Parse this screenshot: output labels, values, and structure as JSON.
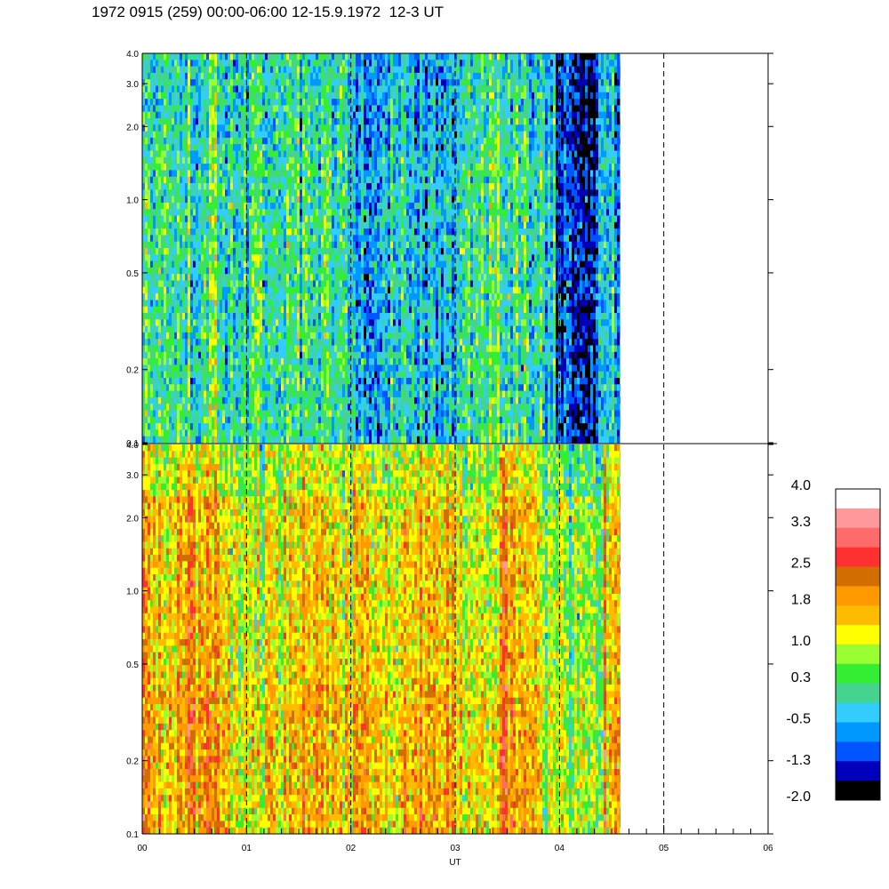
{
  "title": "1972 0915 (259) 00:00-06:00 12-15.9.1972  12-3 UT",
  "chart_data": [
    {
      "type": "heatmap",
      "panel": "upper",
      "x_range": [
        "00",
        "06"
      ],
      "y_scale": "log",
      "ylim": [
        0.1,
        4.0
      ],
      "y_ticks": [
        "0.1",
        "0.2",
        "0.5",
        "1.0",
        "2.0",
        "3.0",
        "4.0"
      ],
      "y_tick_values": [
        0.1,
        0.2,
        0.5,
        1.0,
        2.0,
        3.0,
        4.0
      ],
      "data_extent_x": [
        0,
        4.58
      ],
      "base_value": 0.0,
      "bands": [
        {
          "x": [
            0.0,
            0.35
          ],
          "value": 0.1
        },
        {
          "x": [
            0.35,
            0.62
          ],
          "value": 0.25
        },
        {
          "x": [
            0.62,
            0.7
          ],
          "value": 1.0
        },
        {
          "x": [
            0.7,
            1.0
          ],
          "value": -0.1
        },
        {
          "x": [
            1.0,
            1.55
          ],
          "value": 0.2
        },
        {
          "x": [
            1.55,
            1.95
          ],
          "value": 0.1
        },
        {
          "x": [
            1.95,
            2.3
          ],
          "value": -0.6
        },
        {
          "x": [
            2.3,
            2.6
          ],
          "value": -0.3
        },
        {
          "x": [
            2.6,
            3.0
          ],
          "value": -0.4
        },
        {
          "x": [
            3.0,
            3.5
          ],
          "value": 0.2
        },
        {
          "x": [
            3.5,
            3.95
          ],
          "value": 0.1
        },
        {
          "x": [
            3.95,
            4.35
          ],
          "value": -1.3
        },
        {
          "x": [
            4.35,
            4.58
          ],
          "value": -0.3
        }
      ]
    },
    {
      "type": "heatmap",
      "panel": "lower",
      "x_range": [
        "00",
        "06"
      ],
      "y_scale": "log",
      "ylim": [
        0.1,
        4.0
      ],
      "y_ticks": [
        "0.1",
        "0.2",
        "0.5",
        "1.0",
        "2.0",
        "3.0",
        "4.0"
      ],
      "y_tick_values": [
        0.1,
        0.2,
        0.5,
        1.0,
        2.0,
        3.0,
        4.0
      ],
      "x_ticks": [
        "00",
        "01",
        "02",
        "03",
        "04",
        "05",
        "06"
      ],
      "x_tick_values": [
        0,
        1,
        2,
        3,
        4,
        5,
        6
      ],
      "xlabel": "UT",
      "data_extent_x": [
        0,
        4.58
      ],
      "base_value": 1.3,
      "bands": [
        {
          "x": [
            0.0,
            0.6
          ],
          "value": 1.6
        },
        {
          "x": [
            0.6,
            0.72
          ],
          "value": 2.2
        },
        {
          "x": [
            0.72,
            1.0
          ],
          "value": 1.3
        },
        {
          "x": [
            1.0,
            1.5
          ],
          "value": 1.1
        },
        {
          "x": [
            1.5,
            1.75
          ],
          "value": 1.7
        },
        {
          "x": [
            1.75,
            2.05
          ],
          "value": 1.2
        },
        {
          "x": [
            2.05,
            2.5
          ],
          "value": 1.3
        },
        {
          "x": [
            2.5,
            3.0
          ],
          "value": 1.5
        },
        {
          "x": [
            3.0,
            3.4
          ],
          "value": 1.1
        },
        {
          "x": [
            3.4,
            3.8
          ],
          "value": 1.8
        },
        {
          "x": [
            3.8,
            4.05
          ],
          "value": 0.9
        },
        {
          "x": [
            4.05,
            4.4
          ],
          "value": 0.6
        },
        {
          "x": [
            4.4,
            4.58
          ],
          "value": 1.6
        }
      ]
    }
  ],
  "dashed_time_lines": [
    1,
    2,
    3,
    4,
    5
  ],
  "colorbar": {
    "labels": [
      "4.0",
      "3.3",
      "2.5",
      "1.8",
      "1.0",
      "0.3",
      "-0.5",
      "-1.3",
      "-2.0"
    ],
    "label_values": [
      4.0,
      3.3,
      2.5,
      1.8,
      1.0,
      0.3,
      -0.5,
      -1.3,
      -2.0
    ],
    "range": [
      -2.0,
      4.0
    ],
    "colors_top_to_bottom": [
      "#ffffff",
      "#ff9898",
      "#ff6a6a",
      "#ff3030",
      "#d26e00",
      "#ff9900",
      "#ffbb00",
      "#ffff00",
      "#99ff33",
      "#33ee33",
      "#44d490",
      "#33ccff",
      "#0099ff",
      "#0055ff",
      "#0000bb",
      "#000000"
    ]
  }
}
